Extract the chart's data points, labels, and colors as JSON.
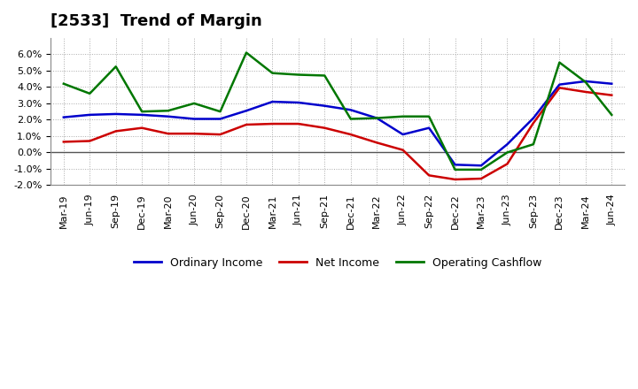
{
  "title": "[2533]  Trend of Margin",
  "x_labels": [
    "Mar-19",
    "Jun-19",
    "Sep-19",
    "Dec-19",
    "Mar-20",
    "Jun-20",
    "Sep-20",
    "Dec-20",
    "Mar-21",
    "Jun-21",
    "Sep-21",
    "Dec-21",
    "Mar-22",
    "Jun-22",
    "Sep-22",
    "Dec-22",
    "Mar-23",
    "Jun-23",
    "Sep-23",
    "Dec-23",
    "Mar-24",
    "Jun-24"
  ],
  "ordinary_income": [
    2.15,
    2.3,
    2.35,
    2.3,
    2.2,
    2.05,
    2.05,
    2.55,
    3.1,
    3.05,
    2.85,
    2.6,
    2.1,
    1.1,
    1.5,
    -0.75,
    -0.8,
    0.5,
    2.1,
    4.15,
    4.35,
    4.2
  ],
  "net_income": [
    0.65,
    0.7,
    1.3,
    1.5,
    1.15,
    1.15,
    1.1,
    1.7,
    1.75,
    1.75,
    1.5,
    1.1,
    0.6,
    0.15,
    -1.4,
    -1.65,
    -1.6,
    -0.7,
    1.8,
    3.95,
    3.7,
    3.5
  ],
  "operating_cashflow": [
    4.2,
    3.6,
    5.25,
    2.5,
    2.55,
    3.0,
    2.5,
    6.1,
    4.85,
    4.75,
    4.7,
    2.05,
    2.1,
    2.2,
    2.2,
    -1.05,
    -1.05,
    0.0,
    0.5,
    5.5,
    4.3,
    2.3
  ],
  "ylim_min": -2.0,
  "ylim_max": 7.0,
  "yticks": [
    -2.0,
    -1.0,
    0.0,
    1.0,
    2.0,
    3.0,
    4.0,
    5.0,
    6.0
  ],
  "color_ordinary": "#0000CC",
  "color_net": "#CC0000",
  "color_cashflow": "#007700",
  "background_color": "#FFFFFF",
  "grid_color": "#AAAAAA",
  "zero_line_color": "#555555",
  "title_fontsize": 13,
  "tick_fontsize": 8,
  "legend_fontsize": 9,
  "linewidth": 1.8
}
